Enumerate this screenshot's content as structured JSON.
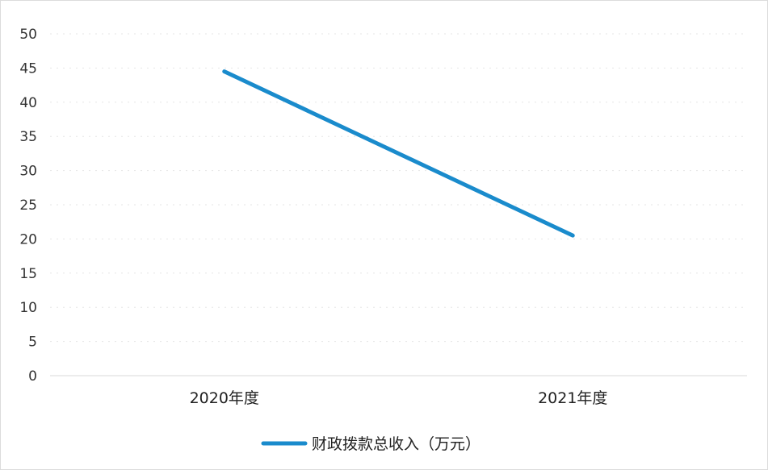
{
  "chart_data": {
    "type": "line",
    "categories": [
      "2020年度",
      "2021年度"
    ],
    "series": [
      {
        "name": "财政拨款总收入（万元）",
        "values": [
          44.5,
          20.5
        ]
      }
    ],
    "yticks": [
      "0",
      "5",
      "10",
      "15",
      "20",
      "25",
      "30",
      "35",
      "40",
      "45",
      "50"
    ],
    "ylim": [
      0,
      50
    ],
    "grid": true,
    "legend_position": "bottom",
    "colors": {
      "series": "#1a8bcc"
    }
  }
}
